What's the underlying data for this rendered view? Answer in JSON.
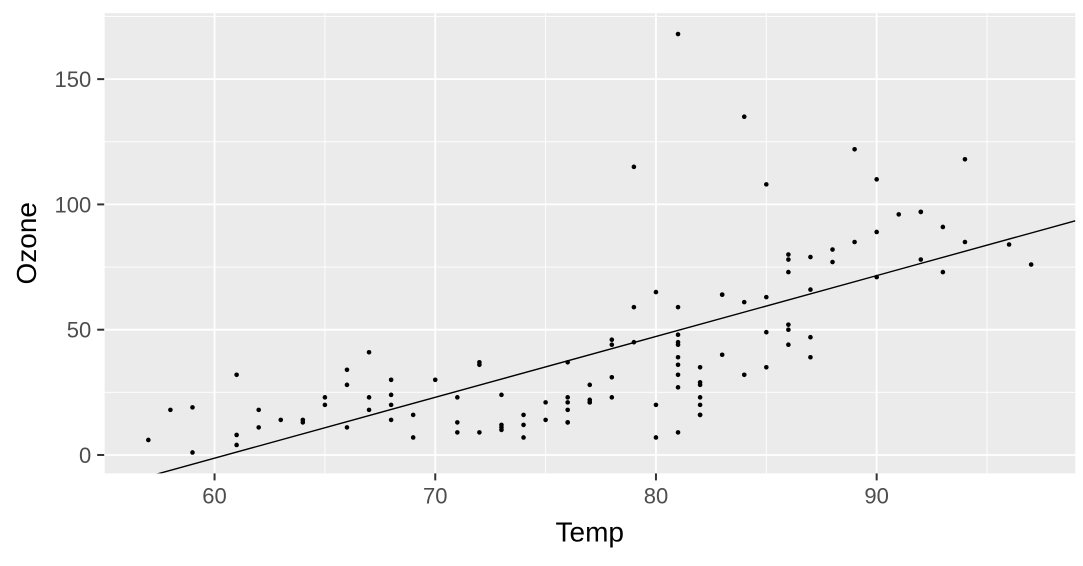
{
  "chart_data": {
    "type": "scatter",
    "title": "",
    "xlabel": "Temp",
    "ylabel": "Ozone",
    "x_ticks": [
      60,
      70,
      80,
      90
    ],
    "x_minor_ticks": [
      55,
      65,
      75,
      85,
      95
    ],
    "y_ticks": [
      0,
      50,
      100,
      150
    ],
    "y_minor_ticks": [
      25,
      75,
      125,
      175
    ],
    "xlim": [
      55,
      99
    ],
    "ylim": [
      -7.35,
      176.35
    ],
    "grid": true,
    "legend": "none",
    "points": [
      [
        67,
        41
      ],
      [
        72,
        36
      ],
      [
        74,
        12
      ],
      [
        62,
        18
      ],
      [
        66,
        28
      ],
      [
        65,
        23
      ],
      [
        59,
        19
      ],
      [
        61,
        8
      ],
      [
        74,
        7
      ],
      [
        69,
        16
      ],
      [
        66,
        11
      ],
      [
        68,
        14
      ],
      [
        58,
        18
      ],
      [
        64,
        14
      ],
      [
        66,
        34
      ],
      [
        57,
        6
      ],
      [
        68,
        30
      ],
      [
        62,
        11
      ],
      [
        59,
        1
      ],
      [
        73,
        11
      ],
      [
        61,
        4
      ],
      [
        61,
        32
      ],
      [
        67,
        23
      ],
      [
        81,
        45
      ],
      [
        79,
        115
      ],
      [
        76,
        37
      ],
      [
        82,
        29
      ],
      [
        90,
        71
      ],
      [
        87,
        39
      ],
      [
        82,
        23
      ],
      [
        77,
        21
      ],
      [
        72,
        37
      ],
      [
        65,
        20
      ],
      [
        73,
        12
      ],
      [
        76,
        13
      ],
      [
        84,
        135
      ],
      [
        85,
        49
      ],
      [
        81,
        32
      ],
      [
        83,
        64
      ],
      [
        83,
        40
      ],
      [
        88,
        77
      ],
      [
        92,
        97
      ],
      [
        92,
        97
      ],
      [
        89,
        85
      ],
      [
        73,
        10
      ],
      [
        81,
        27
      ],
      [
        80,
        7
      ],
      [
        81,
        48
      ],
      [
        82,
        35
      ],
      [
        84,
        61
      ],
      [
        87,
        79
      ],
      [
        85,
        63
      ],
      [
        74,
        16
      ],
      [
        86,
        80
      ],
      [
        85,
        108
      ],
      [
        82,
        20
      ],
      [
        86,
        52
      ],
      [
        88,
        82
      ],
      [
        86,
        50
      ],
      [
        83,
        64
      ],
      [
        81,
        59
      ],
      [
        81,
        39
      ],
      [
        81,
        9
      ],
      [
        82,
        16
      ],
      [
        86,
        78
      ],
      [
        85,
        35
      ],
      [
        87,
        66
      ],
      [
        89,
        122
      ],
      [
        90,
        89
      ],
      [
        90,
        110
      ],
      [
        86,
        44
      ],
      [
        82,
        28
      ],
      [
        80,
        65
      ],
      [
        77,
        22
      ],
      [
        79,
        59
      ],
      [
        76,
        23
      ],
      [
        78,
        31
      ],
      [
        78,
        44
      ],
      [
        77,
        21
      ],
      [
        72,
        9
      ],
      [
        79,
        45
      ],
      [
        81,
        168
      ],
      [
        86,
        73
      ],
      [
        97,
        76
      ],
      [
        94,
        118
      ],
      [
        96,
        84
      ],
      [
        94,
        85
      ],
      [
        91,
        96
      ],
      [
        92,
        78
      ],
      [
        93,
        73
      ],
      [
        93,
        91
      ],
      [
        87,
        47
      ],
      [
        84,
        32
      ],
      [
        80,
        20
      ],
      [
        78,
        23
      ],
      [
        75,
        21
      ],
      [
        73,
        24
      ],
      [
        81,
        44
      ],
      [
        76,
        21
      ],
      [
        77,
        28
      ],
      [
        71,
        9
      ],
      [
        71,
        13
      ],
      [
        78,
        46
      ],
      [
        67,
        18
      ],
      [
        76,
        13
      ],
      [
        68,
        24
      ],
      [
        82,
        16
      ],
      [
        64,
        13
      ],
      [
        71,
        23
      ],
      [
        81,
        36
      ],
      [
        69,
        7
      ],
      [
        63,
        14
      ],
      [
        70,
        30
      ],
      [
        75,
        14
      ],
      [
        76,
        18
      ],
      [
        68,
        20
      ]
    ],
    "fit_line": {
      "slope": 2.4287,
      "intercept": -146.995
    },
    "colors": {
      "background": "#FFFFFF",
      "panel_bg": "#EBEBEB",
      "grid": "#FFFFFF",
      "point": "#000000",
      "line": "#000000",
      "axis_text": "#4D4D4D",
      "axis_title": "#000000",
      "tick_mark": "#333333"
    }
  }
}
